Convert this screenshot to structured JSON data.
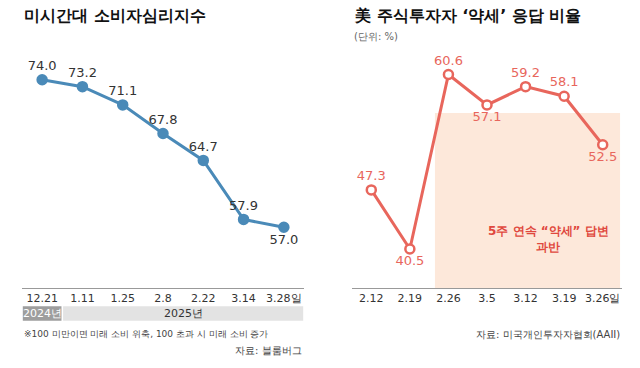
{
  "chart_data": [
    {
      "type": "line",
      "title": "미시간대 소비자심리지수",
      "categories": [
        "12.21",
        "1.11",
        "1.25",
        "2.8",
        "2.22",
        "3.14",
        "3.28일"
      ],
      "values": [
        74.0,
        73.2,
        71.1,
        67.8,
        64.7,
        57.9,
        57.0
      ],
      "value_labels": [
        "74.0",
        "73.2",
        "71.1",
        "67.8",
        "64.7",
        "57.9",
        "57.0"
      ],
      "color": "#4a8ab8",
      "marker": "circle",
      "ylim": [
        50,
        78
      ],
      "data_labels": true,
      "tick_labels": "x",
      "grid": false,
      "years": [
        {
          "label": "2024년",
          "from": "12.21",
          "to": "12.21"
        },
        {
          "label": "2025년",
          "from": "1.11",
          "to": "3.28일"
        }
      ],
      "note": "※100 미만이면 미래 소비 위축, 100 초과 시 미래 소비 증가",
      "source": "자료: 블룸버그"
    },
    {
      "type": "line",
      "title": "美 주식투자자 ‘약세’ 응답 비율",
      "subtitle": "(단위: %)",
      "categories": [
        "2.12",
        "2.19",
        "2.26",
        "3.5",
        "3.12",
        "3.19",
        "3.26일"
      ],
      "values": [
        47.3,
        40.5,
        60.6,
        57.1,
        59.2,
        58.1,
        52.5
      ],
      "color": "#e8665c",
      "marker": "circle-open",
      "ylim": [
        36,
        64
      ],
      "data_labels": true,
      "tick_labels": "x",
      "grid": false,
      "highlight": {
        "from": "2.26",
        "to": "3.26일",
        "text": [
          "5주 연속 “약세” 답변",
          "과반"
        ]
      },
      "source": "자료: 미국개인투자자협회(AAII)"
    }
  ]
}
